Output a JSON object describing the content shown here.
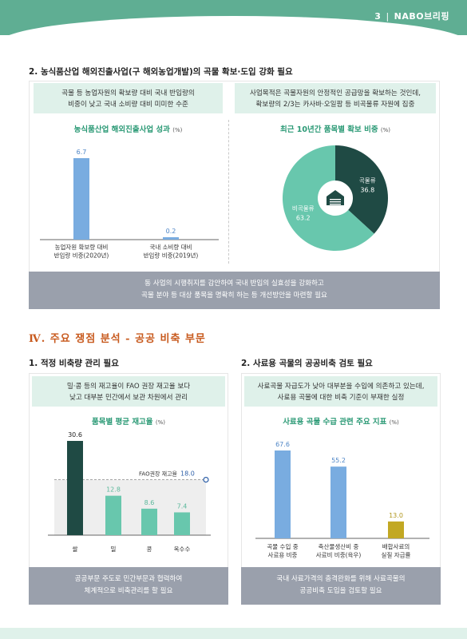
{
  "header": {
    "page_number": "3",
    "brand": "NABO브리핑"
  },
  "section2_top": {
    "title": "2. 농식품산업 해외진출사업(구 해외농업개발)의 곡물 확보·도입 강화 필요",
    "left_summary": [
      "곡물 등 농업자원의 확보량 대비 국내 반입량의",
      "비중이 낮고 국내 소비량 대비 미미한 수준"
    ],
    "right_summary": [
      "사업목적은 곡물자원의 안정적인 공급망을 확보하는 것인데,",
      "확보량의 2/3는 카사바·오일팜 등 비곡물류 자원에 집중"
    ],
    "footer": [
      "동 사업의 시행취지를 감안하여 국내 반입의 실효성을 강화하고",
      "곡물 분야 등 대상 품목을 명확히 하는 등 개선방안을 마련할 필요"
    ]
  },
  "section4": {
    "title": "Ⅳ. 주요 쟁점 분석 - 공공 비축 부문"
  },
  "section4_left": {
    "title": "1. 적정 비축량 관리 필요",
    "summary": [
      "밀·콩 등의 재고율이 FAO 권장 재고율 보다",
      "낮고 대부분 민간에서 보관 차원에서 관리"
    ],
    "footer": [
      "공공부문 주도로 민간부문과 협력하여",
      "체계적으로 비축관리를 할 필요"
    ]
  },
  "section4_right": {
    "title": "2. 사료용 곡물의 공공비축 검토 필요",
    "summary": [
      "사료곡물 자급도가 낮아 대부분을 수입에 의존하고 있는데,",
      "사료용 곡물에 대한 비축 기준이 부재한 실정"
    ],
    "footer": [
      "국내 사료가격의 충격완화를 위해 사료곡물의",
      "공공비축 도입을 검토할 필요"
    ]
  },
  "chart_data": [
    {
      "type": "bar",
      "title": "농식품산업 해외진출사업 성과",
      "unit": "(%)",
      "categories": [
        [
          "농업자원 확보량 대비",
          "반입량 비중(2020년)"
        ],
        [
          "국내 소비량 대비",
          "반입량 비중(2019년)"
        ]
      ],
      "values": [
        6.7,
        0.2
      ],
      "value_labels": [
        "6.7",
        "0.2"
      ],
      "colors": {
        "bar": "#79ace0",
        "label": "#4f86c6"
      }
    },
    {
      "type": "pie",
      "title": "최근 10년간 품목별 확보 비중",
      "unit": "(%)",
      "slices": [
        {
          "name": "곡물류",
          "value": 36.8,
          "color": "#1f4a44"
        },
        {
          "name": "비곡물류",
          "value": 63.2,
          "color": "#68c7ad"
        }
      ],
      "center_icon": "warehouse-icon"
    },
    {
      "type": "bar",
      "title": "품목별 평균 재고율",
      "unit": "(%)",
      "categories": [
        "쌀",
        "밀",
        "콩",
        "옥수수"
      ],
      "values": [
        30.6,
        12.8,
        8.6,
        7.4
      ],
      "value_labels": [
        "30.6",
        "12.8",
        "8.6",
        "7.4"
      ],
      "reference": {
        "label": "FAO권장 재고율",
        "value": 18.0,
        "value_label": "18.0"
      },
      "colors": {
        "first": "#1f4a44",
        "rest": "#68c7ad",
        "label": "#5cb89c"
      }
    },
    {
      "type": "bar",
      "title": "사료용 곡물 수급 관련 주요 지표",
      "unit": "(%)",
      "categories": [
        [
          "곡물 수입 중",
          "사료용 비중"
        ],
        [
          "축산물생산비 중",
          "사료비 비중(육우)"
        ],
        [
          "배합사료의",
          "실질 자급률"
        ]
      ],
      "values": [
        67.6,
        55.2,
        13.0
      ],
      "value_labels": [
        "67.6",
        "55.2",
        "13.0"
      ],
      "colors": {
        "bars": [
          "#79ace0",
          "#79ace0",
          "#c2a823"
        ],
        "labels": [
          "#4f86c6",
          "#4f86c6",
          "#b0961c"
        ]
      }
    }
  ]
}
